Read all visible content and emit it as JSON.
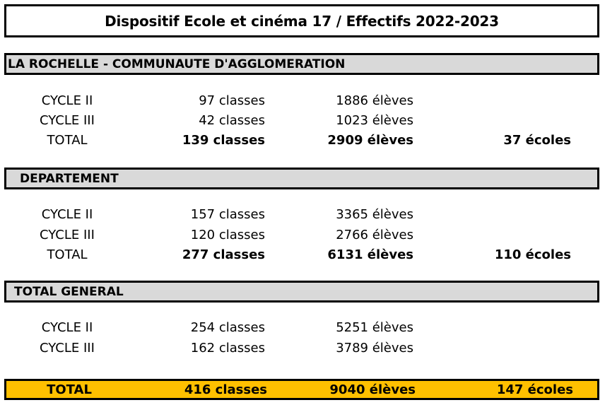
{
  "title": "Dispositif Ecole et cinéma 17 / Effectifs  2022-2023",
  "sections": [
    {
      "header": "LA ROCHELLE - COMMUNAUTE D'AGGLOMERATION",
      "rows": [
        {
          "label": "CYCLE II",
          "classes": "97 classes",
          "eleves": "1886 élèves",
          "ecoles": ""
        },
        {
          "label": "CYCLE III",
          "classes": "42 classes",
          "eleves": "1023 élèves",
          "ecoles": ""
        },
        {
          "label": "TOTAL",
          "classes": "139 classes",
          "eleves": "2909 élèves",
          "ecoles": "37 écoles"
        }
      ]
    },
    {
      "header": "DEPARTEMENT",
      "rows": [
        {
          "label": "CYCLE II",
          "classes": "157 classes",
          "eleves": "3365 élèves",
          "ecoles": ""
        },
        {
          "label": "CYCLE III",
          "classes": "120 classes",
          "eleves": "2766 élèves",
          "ecoles": ""
        },
        {
          "label": "TOTAL",
          "classes": "277 classes",
          "eleves": "6131 élèves",
          "ecoles": "110 écoles"
        }
      ]
    },
    {
      "header": "TOTAL GENERAL",
      "rows": [
        {
          "label": "CYCLE II",
          "classes": "254 classes",
          "eleves": "5251 élèves",
          "ecoles": ""
        },
        {
          "label": "CYCLE III",
          "classes": "162 classes",
          "eleves": "3789 élèves",
          "ecoles": ""
        }
      ]
    }
  ],
  "grand_total": {
    "label": "TOTAL",
    "classes": "416 classes",
    "eleves": "9040 élèves",
    "ecoles": "147 écoles"
  },
  "colors": {
    "section_header_bg": "#d9d9d9",
    "grand_total_bg": "#ffc000"
  }
}
